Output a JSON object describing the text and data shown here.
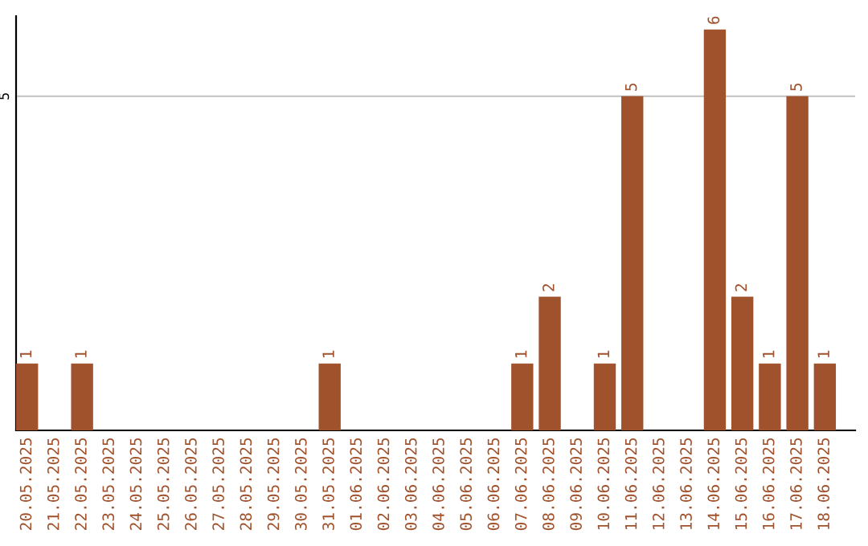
{
  "chart_data": {
    "type": "bar",
    "categories": [
      "20.05.2025",
      "21.05.2025",
      "22.05.2025",
      "23.05.2025",
      "24.05.2025",
      "25.05.2025",
      "26.05.2025",
      "27.05.2025",
      "28.05.2025",
      "29.05.2025",
      "30.05.2025",
      "31.05.2025",
      "01.06.2025",
      "02.06.2025",
      "03.06.2025",
      "04.06.2025",
      "05.06.2025",
      "06.06.2025",
      "07.06.2025",
      "08.06.2025",
      "09.06.2025",
      "10.06.2025",
      "11.06.2025",
      "12.06.2025",
      "13.06.2025",
      "14.06.2025",
      "15.06.2025",
      "16.06.2025",
      "17.06.2025",
      "18.06.2025"
    ],
    "values": [
      1,
      0,
      1,
      0,
      0,
      0,
      0,
      0,
      0,
      0,
      0,
      1,
      0,
      0,
      0,
      0,
      0,
      0,
      1,
      2,
      0,
      1,
      5,
      0,
      0,
      6,
      2,
      1,
      5,
      1
    ],
    "value_labels": [
      "1",
      null,
      "1",
      null,
      null,
      null,
      null,
      null,
      null,
      null,
      null,
      "1",
      null,
      null,
      null,
      null,
      null,
      null,
      "1",
      "2",
      null,
      "1",
      "5",
      null,
      null,
      "6",
      "2",
      "1",
      "5",
      "1"
    ],
    "color": "#a0522d",
    "ylim": [
      0,
      6.2
    ],
    "yticks": [
      5
    ],
    "grid": "y"
  }
}
